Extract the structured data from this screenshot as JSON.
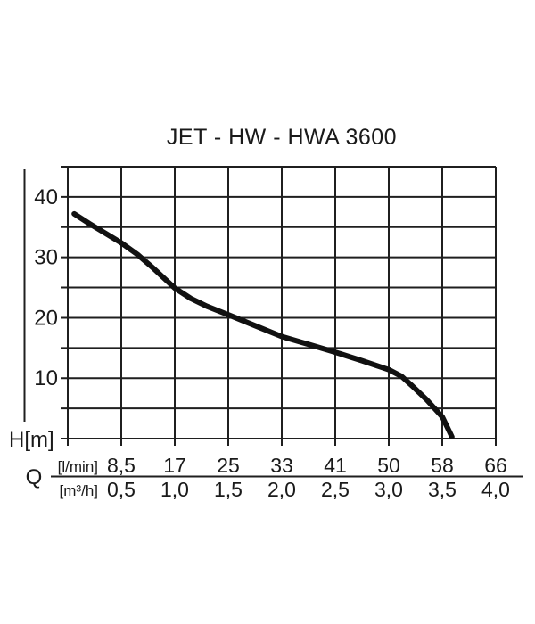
{
  "chart_data": {
    "type": "line",
    "title": "JET - HW - HWA 3600",
    "xlabel": "Q",
    "ylabel": "H[m]",
    "grid": true,
    "legend": "none",
    "x_axis": {
      "unit_labels": [
        "[l/min]",
        "[m³/h]"
      ],
      "tick_labels_l_min": [
        "8,5",
        "17",
        "25",
        "33",
        "41",
        "50",
        "58",
        "66"
      ],
      "tick_labels_m3_h": [
        "0,5",
        "1,0",
        "1,5",
        "2,0",
        "2,5",
        "3,0",
        "3,5",
        "4,0"
      ],
      "range_m3_h": [
        0,
        4
      ],
      "grid_step_m3_h": 0.5
    },
    "y_axis": {
      "tick_labels": [
        "40",
        "30",
        "20",
        "10"
      ],
      "tick_values": [
        40,
        30,
        20,
        10
      ],
      "range_m": [
        0,
        45
      ],
      "grid_step_m": 5
    },
    "series": [
      {
        "name": "JET - HW - HWA 3600 pump curve",
        "x_unit": "m³/h",
        "y_unit": "m",
        "points": [
          [
            0.06,
            37.2
          ],
          [
            0.2,
            35.6
          ],
          [
            0.35,
            34.0
          ],
          [
            0.5,
            32.4
          ],
          [
            0.65,
            30.5
          ],
          [
            0.8,
            28.2
          ],
          [
            1.0,
            24.9
          ],
          [
            1.15,
            23.2
          ],
          [
            1.3,
            21.9
          ],
          [
            1.5,
            20.5
          ],
          [
            1.75,
            18.7
          ],
          [
            2.0,
            16.9
          ],
          [
            2.25,
            15.6
          ],
          [
            2.5,
            14.3
          ],
          [
            2.75,
            12.9
          ],
          [
            3.0,
            11.4
          ],
          [
            3.12,
            10.3
          ],
          [
            3.22,
            8.7
          ],
          [
            3.35,
            6.5
          ],
          [
            3.5,
            3.6
          ],
          [
            3.59,
            0.3
          ]
        ]
      }
    ],
    "colors": {
      "line": "#111111",
      "grid": "#1f1f1f",
      "text": "#1a1a1a"
    }
  }
}
